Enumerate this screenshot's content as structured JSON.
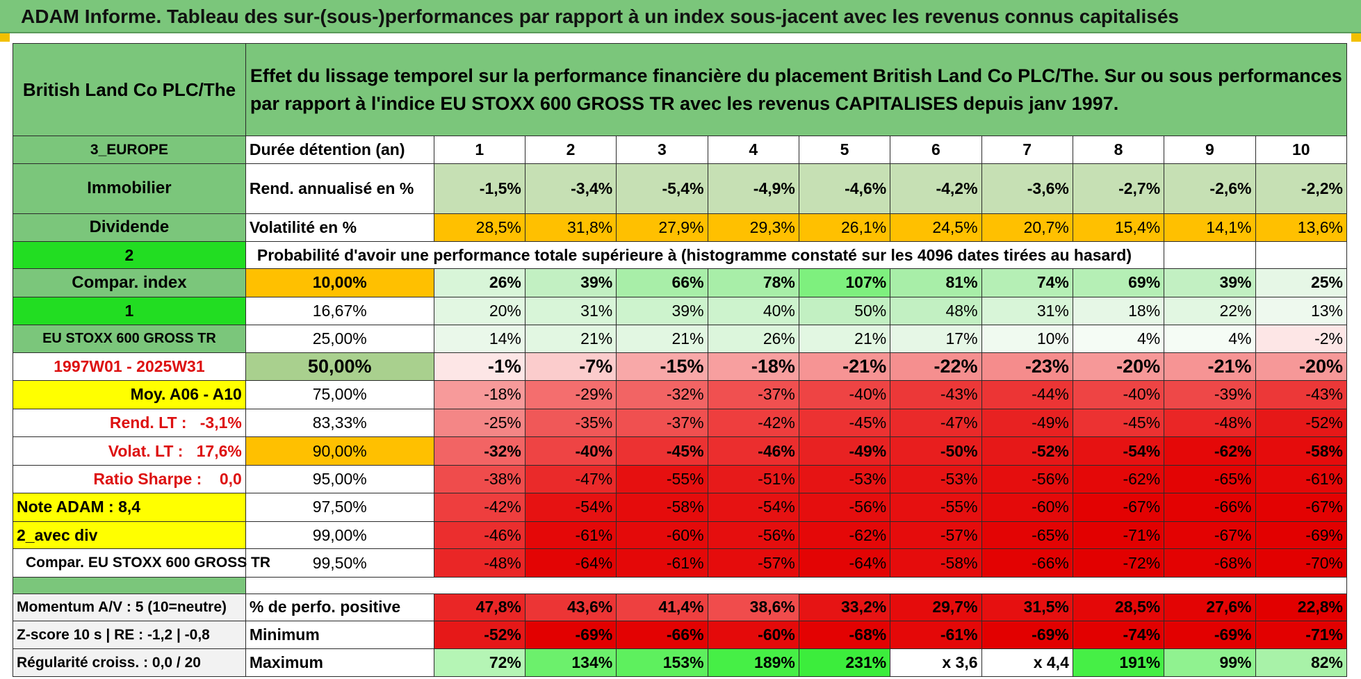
{
  "title": "ADAM Informe. Tableau des sur-(sous-)performances par rapport à un index sous-jacent avec les revenus connus capitalisés",
  "company": "British Land Co PLC/The",
  "description": "Effet du lissage temporel sur la performance financière du placement British Land Co PLC/The. Sur ou sous performances par rapport à l'indice EU STOXX 600 GROSS TR avec les revenus CAPITALISES depuis janv 1997.",
  "left_labels": {
    "region": "3_EUROPE",
    "sector": "Immobilier",
    "type": "Dividende",
    "sel2": "2",
    "compar_index": "Compar. index",
    "sel1": "1",
    "index_name": "EU STOXX 600 GROSS TR",
    "period": "1997W01 - 2025W31",
    "moy": "Moy. A06 - A10",
    "rend_lt": "Rend. LT :   -3,1%",
    "volat_lt": "Volat. LT :   17,6%",
    "sharpe": "Ratio Sharpe :    0,0",
    "note": "Note ADAM : 8,4",
    "avec_div": "2_avec div",
    "compar_eu": "Compar. EU STOXX 600 GROSS TR",
    "momentum": "Momentum A/V : 5 (10=neutre)",
    "zscore": "Z-score 10 s | RE : -1,2 | -0,8",
    "regularite": "Régularité croiss. : 0,0 / 20"
  },
  "header_row": {
    "label": "Durée détention (an)",
    "years": [
      "1",
      "2",
      "3",
      "4",
      "5",
      "6",
      "7",
      "8",
      "9",
      "10"
    ]
  },
  "rend_row": {
    "label": "Rend. annualisé en %",
    "values": [
      "-1,5%",
      "-3,4%",
      "-5,4%",
      "-4,9%",
      "-4,6%",
      "-4,2%",
      "-3,6%",
      "-2,7%",
      "-2,6%",
      "-2,2%"
    ]
  },
  "vol_row": {
    "label": "Volatilité en %",
    "values": [
      "28,5%",
      "31,8%",
      "27,9%",
      "29,3%",
      "26,1%",
      "24,5%",
      "20,7%",
      "15,4%",
      "14,1%",
      "13,6%"
    ]
  },
  "prob_title": "Probabilité d'avoir une performance totale supérieure à (histogramme constaté sur les 4096 dates tirées au hasard)",
  "prob_rows": [
    {
      "pct": "10,00%",
      "values": [
        "26%",
        "39%",
        "66%",
        "78%",
        "107%",
        "81%",
        "74%",
        "69%",
        "39%",
        "25%"
      ],
      "colors": [
        "#d8f5d8",
        "#c2f0c2",
        "#a8eea8",
        "#a8eea8",
        "#7ef07e",
        "#a8eea8",
        "#b5efb5",
        "#b5efb5",
        "#c2f0c2",
        "#e6f7e6"
      ]
    },
    {
      "pct": "16,67%",
      "values": [
        "20%",
        "31%",
        "39%",
        "40%",
        "50%",
        "48%",
        "31%",
        "18%",
        "22%",
        "13%"
      ],
      "colors": [
        "#e2f7e2",
        "#d8f5d8",
        "#cdf3cd",
        "#cdf3cd",
        "#c2f0c2",
        "#c2f0c2",
        "#d8f5d8",
        "#e6f7e6",
        "#e2f7e2",
        "#eef9ee"
      ]
    },
    {
      "pct": "25,00%",
      "values": [
        "14%",
        "21%",
        "21%",
        "26%",
        "21%",
        "17%",
        "10%",
        "4%",
        "4%",
        "-2%"
      ],
      "colors": [
        "#eaf8ea",
        "#e2f7e2",
        "#e2f7e2",
        "#dcf6dc",
        "#e2f7e2",
        "#e6f7e6",
        "#f0faf0",
        "#f5fcf5",
        "#f5fcf5",
        "#fde6e6"
      ]
    },
    {
      "pct": "50,00%",
      "values": [
        "-1%",
        "-7%",
        "-15%",
        "-18%",
        "-21%",
        "-22%",
        "-23%",
        "-20%",
        "-21%",
        "-20%"
      ],
      "colors": [
        "#fde6e6",
        "#fbcccc",
        "#f8a8a8",
        "#f79f9f",
        "#f69494",
        "#f58f8f",
        "#f58c8c",
        "#f69898",
        "#f69494",
        "#f69898"
      ]
    },
    {
      "pct": "75,00%",
      "values": [
        "-18%",
        "-29%",
        "-32%",
        "-37%",
        "-40%",
        "-43%",
        "-44%",
        "-40%",
        "-39%",
        "-43%"
      ],
      "colors": [
        "#f79a9a",
        "#f46e6e",
        "#f26464",
        "#f05050",
        "#ee4444",
        "#ec3838",
        "#ec3535",
        "#ee4444",
        "#ee4848",
        "#ec3838"
      ]
    },
    {
      "pct": "83,33%",
      "values": [
        "-25%",
        "-35%",
        "-37%",
        "-42%",
        "-45%",
        "-47%",
        "-49%",
        "-45%",
        "-48%",
        "-52%"
      ],
      "colors": [
        "#f48686",
        "#f05858",
        "#f05050",
        "#ee3e3e",
        "#ec3232",
        "#ea2a2a",
        "#e82222",
        "#ec3232",
        "#ea2626",
        "#e61818"
      ]
    },
    {
      "pct": "90,00%",
      "values": [
        "-32%",
        "-40%",
        "-45%",
        "-46%",
        "-49%",
        "-50%",
        "-52%",
        "-54%",
        "-62%",
        "-58%"
      ],
      "colors": [
        "#f26464",
        "#ee4444",
        "#ec3232",
        "#eb2e2e",
        "#e82222",
        "#e81e1e",
        "#e61818",
        "#e61212",
        "#e40808",
        "#e50c0c"
      ]
    },
    {
      "pct": "95,00%",
      "values": [
        "-38%",
        "-47%",
        "-55%",
        "-51%",
        "-53%",
        "-53%",
        "-56%",
        "-62%",
        "-65%",
        "-61%"
      ],
      "colors": [
        "#ef4c4c",
        "#ea2a2a",
        "#e61010",
        "#e71a1a",
        "#e61414",
        "#e61414",
        "#e50e0e",
        "#e40808",
        "#e30404",
        "#e40808"
      ]
    },
    {
      "pct": "97,50%",
      "values": [
        "-42%",
        "-54%",
        "-58%",
        "-54%",
        "-56%",
        "-55%",
        "-60%",
        "-67%",
        "-66%",
        "-67%"
      ],
      "colors": [
        "#ee3e3e",
        "#e61212",
        "#e50c0c",
        "#e61212",
        "#e50e0e",
        "#e61010",
        "#e40a0a",
        "#e30202",
        "#e30202",
        "#e30202"
      ]
    },
    {
      "pct": "99,00%",
      "values": [
        "-46%",
        "-61%",
        "-60%",
        "-56%",
        "-62%",
        "-57%",
        "-65%",
        "-71%",
        "-67%",
        "-69%"
      ],
      "colors": [
        "#eb2e2e",
        "#e40808",
        "#e40a0a",
        "#e50e0e",
        "#e40808",
        "#e50c0c",
        "#e30404",
        "#e20000",
        "#e30202",
        "#e20000"
      ]
    },
    {
      "pct": "99,50%",
      "values": [
        "-48%",
        "-64%",
        "-61%",
        "-57%",
        "-64%",
        "-58%",
        "-66%",
        "-72%",
        "-68%",
        "-70%"
      ],
      "colors": [
        "#ea2626",
        "#e30404",
        "#e40808",
        "#e50c0c",
        "#e30404",
        "#e50c0c",
        "#e30202",
        "#e20000",
        "#e30202",
        "#e20000"
      ]
    }
  ],
  "bottom_rows": [
    {
      "label": "% de perfo. positive",
      "values": [
        "47,8%",
        "43,6%",
        "41,4%",
        "38,6%",
        "33,2%",
        "29,7%",
        "31,5%",
        "28,5%",
        "27,6%",
        "22,8%"
      ],
      "colors": [
        "#ea2626",
        "#ec3535",
        "#ee4040",
        "#f04c4c",
        "#e61414",
        "#e50c0c",
        "#e61010",
        "#e40808",
        "#e30404",
        "#e20000"
      ]
    },
    {
      "label": "Minimum",
      "values": [
        "-52%",
        "-69%",
        "-66%",
        "-60%",
        "-68%",
        "-61%",
        "-69%",
        "-74%",
        "-69%",
        "-71%"
      ],
      "colors": [
        "#e61818",
        "#e20000",
        "#e30202",
        "#e40a0a",
        "#e30202",
        "#e40808",
        "#e20000",
        "#e20000",
        "#e20000",
        "#e20000"
      ]
    },
    {
      "label": "Maximum",
      "values": [
        "72%",
        "134%",
        "153%",
        "189%",
        "231%",
        "x 3,6",
        "x 4,4",
        "191%",
        "99%",
        "82%"
      ],
      "colors": [
        "#b5f5b5",
        "#6cf06c",
        "#5ef05e",
        "#46ef46",
        "#3ced3c",
        "#ffffff",
        "#ffffff",
        "#46ef46",
        "#90f290",
        "#a8f2a8"
      ]
    }
  ],
  "colors": {
    "header_green": "#7bc67b",
    "rend_green": "#c6e0b4",
    "vol_orange": "#ffc000",
    "lime": "#22dd22",
    "yellow": "#ffff00",
    "label_red": "#dd1111"
  }
}
